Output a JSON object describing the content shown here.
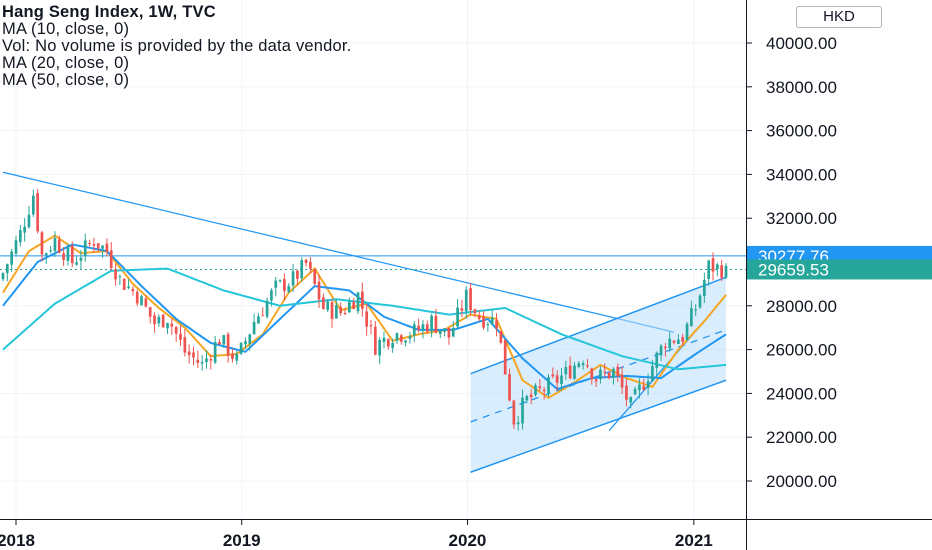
{
  "legend": {
    "title": "Hang Seng Index, 1W, TVC",
    "lines": [
      "MA (10, close, 0)",
      "Vol: No volume is provided by the data vendor.",
      "MA (20, close, 0)",
      "MA (50, close, 0)"
    ]
  },
  "currency": "HKD",
  "colors": {
    "up": "#26a69a",
    "down": "#ef5350",
    "ma10": "#f5a623",
    "ma20": "#2196f3",
    "ma50": "#26c6da",
    "trendline": "#2196f3",
    "channel_fill": "#bbdefb",
    "tag_blue": "#2196f3",
    "tag_teal": "#26a69a"
  },
  "chart_data": {
    "type": "candlestick",
    "title": "Hang Seng Index, 1W, TVC",
    "xlabel": "",
    "ylabel": "",
    "ylim": [
      18500,
      41600
    ],
    "xlim": [
      "2017-12-11",
      "2021-02-22"
    ],
    "y_ticks": [
      "40000.00",
      "38000.00",
      "36000.00",
      "34000.00",
      "32000.00",
      "28000.00",
      "26000.00",
      "24000.00",
      "22000.00",
      "20000.00"
    ],
    "y_tick_values": [
      40000,
      38000,
      36000,
      34000,
      32000,
      28000,
      26000,
      24000,
      22000,
      20000
    ],
    "x_ticks": [
      {
        "label": "2018",
        "date": "2018-01-01"
      },
      {
        "label": "2019",
        "date": "2019-01-01"
      },
      {
        "label": "2020",
        "date": "2020-01-01"
      },
      {
        "label": "2021",
        "date": "2021-01-01"
      }
    ],
    "price_tags": [
      {
        "value": 30277.76,
        "label": "30277.76",
        "color": "#2196f3"
      },
      {
        "value": 29659.53,
        "label": "29659.53",
        "color": "#26a69a"
      }
    ],
    "horizontal_lines": [
      {
        "value": 30277.76,
        "style": "solid",
        "color": "#2196f3"
      },
      {
        "value": 29659.53,
        "style": "dotted",
        "color": "#26a69a"
      }
    ],
    "close_anchors": [
      [
        "2017-12-11",
        29500
      ],
      [
        "2018-01-08",
        31300
      ],
      [
        "2018-01-29",
        33100
      ],
      [
        "2018-02-12",
        30300
      ],
      [
        "2018-03-05",
        31000
      ],
      [
        "2018-04-02",
        30000
      ],
      [
        "2018-05-07",
        31000
      ],
      [
        "2018-05-28",
        30500
      ],
      [
        "2018-06-18",
        29200
      ],
      [
        "2018-07-16",
        28500
      ],
      [
        "2018-08-13",
        27200
      ],
      [
        "2018-09-03",
        27500
      ],
      [
        "2018-10-01",
        25900
      ],
      [
        "2018-10-29",
        25300
      ],
      [
        "2018-11-26",
        26500
      ],
      [
        "2018-12-24",
        25500
      ],
      [
        "2019-01-21",
        27300
      ],
      [
        "2019-02-25",
        28800
      ],
      [
        "2019-03-25",
        29200
      ],
      [
        "2019-04-15",
        29900
      ],
      [
        "2019-05-13",
        27900
      ],
      [
        "2019-06-10",
        27700
      ],
      [
        "2019-07-08",
        28500
      ],
      [
        "2019-08-05",
        26200
      ],
      [
        "2019-09-02",
        26700
      ],
      [
        "2019-10-07",
        26800
      ],
      [
        "2019-11-04",
        27300
      ],
      [
        "2019-12-02",
        26600
      ],
      [
        "2019-12-30",
        28400
      ],
      [
        "2020-01-20",
        27500
      ],
      [
        "2020-02-17",
        27300
      ],
      [
        "2020-03-16",
        22800
      ],
      [
        "2020-04-06",
        23700
      ],
      [
        "2020-05-04",
        24200
      ],
      [
        "2020-06-08",
        24900
      ],
      [
        "2020-07-06",
        25700
      ],
      [
        "2020-07-27",
        24700
      ],
      [
        "2020-08-24",
        25000
      ],
      [
        "2020-09-21",
        23400
      ],
      [
        "2020-10-19",
        24900
      ],
      [
        "2020-11-16",
        26400
      ],
      [
        "2020-12-14",
        26600
      ],
      [
        "2021-01-04",
        27900
      ],
      [
        "2021-01-25",
        29800
      ],
      [
        "2021-02-15",
        29700
      ],
      [
        "2021-02-22",
        29500
      ]
    ],
    "series": [
      {
        "name": "MA (10, close, 0)",
        "values": [
          [
            "2017-12-11",
            28600
          ],
          [
            "2018-01-22",
            30500
          ],
          [
            "2018-03-05",
            31200
          ],
          [
            "2018-04-16",
            30400
          ],
          [
            "2018-05-28",
            30500
          ],
          [
            "2018-07-09",
            29000
          ],
          [
            "2018-08-20",
            27900
          ],
          [
            "2018-10-01",
            27000
          ],
          [
            "2018-11-12",
            25700
          ],
          [
            "2018-12-24",
            25800
          ],
          [
            "2019-02-04",
            26700
          ],
          [
            "2019-03-18",
            28600
          ],
          [
            "2019-04-29",
            29700
          ],
          [
            "2019-06-10",
            27800
          ],
          [
            "2019-07-22",
            28100
          ],
          [
            "2019-09-02",
            26400
          ],
          [
            "2019-10-14",
            26700
          ],
          [
            "2019-11-25",
            26900
          ],
          [
            "2020-01-06",
            27600
          ],
          [
            "2020-02-17",
            27400
          ],
          [
            "2020-03-30",
            24600
          ],
          [
            "2020-05-11",
            23800
          ],
          [
            "2020-06-22",
            24500
          ],
          [
            "2020-08-03",
            25300
          ],
          [
            "2020-09-14",
            24700
          ],
          [
            "2020-10-26",
            24300
          ],
          [
            "2020-12-07",
            26000
          ],
          [
            "2021-01-18",
            27300
          ],
          [
            "2021-02-22",
            28500
          ]
        ]
      },
      {
        "name": "MA (20, close, 0)",
        "values": [
          [
            "2017-12-11",
            28000
          ],
          [
            "2018-02-05",
            30000
          ],
          [
            "2018-04-02",
            30800
          ],
          [
            "2018-05-28",
            30500
          ],
          [
            "2018-07-23",
            28900
          ],
          [
            "2018-09-17",
            27400
          ],
          [
            "2018-11-12",
            26300
          ],
          [
            "2019-01-07",
            25900
          ],
          [
            "2019-03-04",
            27400
          ],
          [
            "2019-04-29",
            28900
          ],
          [
            "2019-06-24",
            28700
          ],
          [
            "2019-08-19",
            27500
          ],
          [
            "2019-10-14",
            26900
          ],
          [
            "2019-12-09",
            26900
          ],
          [
            "2020-02-03",
            27400
          ],
          [
            "2020-03-30",
            25600
          ],
          [
            "2020-05-25",
            24200
          ],
          [
            "2020-07-20",
            24700
          ],
          [
            "2020-09-14",
            24800
          ],
          [
            "2020-11-09",
            24700
          ],
          [
            "2021-01-04",
            25800
          ],
          [
            "2021-02-22",
            26700
          ]
        ]
      },
      {
        "name": "MA (50, close, 0)",
        "values": [
          [
            "2017-12-11",
            26000
          ],
          [
            "2018-03-05",
            28100
          ],
          [
            "2018-06-04",
            29600
          ],
          [
            "2018-09-03",
            29700
          ],
          [
            "2018-12-03",
            28700
          ],
          [
            "2019-03-04",
            28000
          ],
          [
            "2019-06-03",
            28300
          ],
          [
            "2019-09-02",
            28000
          ],
          [
            "2019-12-02",
            27600
          ],
          [
            "2020-03-02",
            27900
          ],
          [
            "2020-06-01",
            26700
          ],
          [
            "2020-09-07",
            25700
          ],
          [
            "2020-12-07",
            25100
          ],
          [
            "2021-02-22",
            25300
          ]
        ]
      }
    ],
    "drawings": [
      {
        "type": "trendline",
        "from": [
          "2017-12-11",
          34100
        ],
        "to": [
          "2020-11-30",
          26800
        ]
      },
      {
        "type": "channel",
        "from": [
          "2020-01-06",
          24900
        ],
        "to": [
          "2021-02-22",
          29300
        ],
        "lower_from": [
          "2020-01-06",
          20400
        ],
        "lower_to": [
          "2021-02-22",
          24600
        ],
        "mid_from": [
          "2020-01-06",
          22700
        ],
        "mid_to": [
          "2021-02-22",
          26900
        ]
      },
      {
        "type": "trendline",
        "from": [
          "2020-08-17",
          22300
        ],
        "to": [
          "2021-01-18",
          27300
        ]
      }
    ]
  }
}
